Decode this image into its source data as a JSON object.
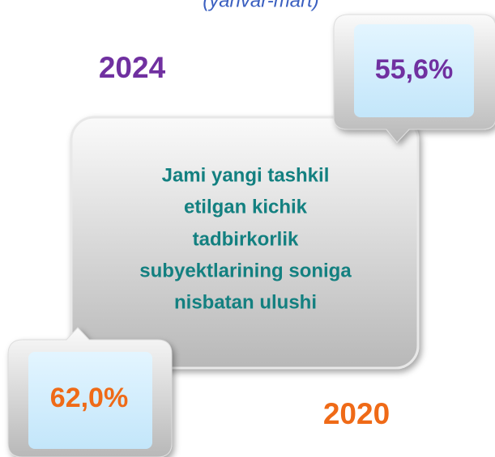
{
  "subtitle": "(yanvar-mart)",
  "top_year": "2024",
  "top_value": "55,6%",
  "center_text": {
    "lines": [
      "Jami yangi tashkil",
      "etilgan kichik",
      "tadbirkorlik",
      "subyektlarining soniga",
      "nisbatan ulushi"
    ]
  },
  "bottom_value": "62,0%",
  "bottom_year": "2020"
}
